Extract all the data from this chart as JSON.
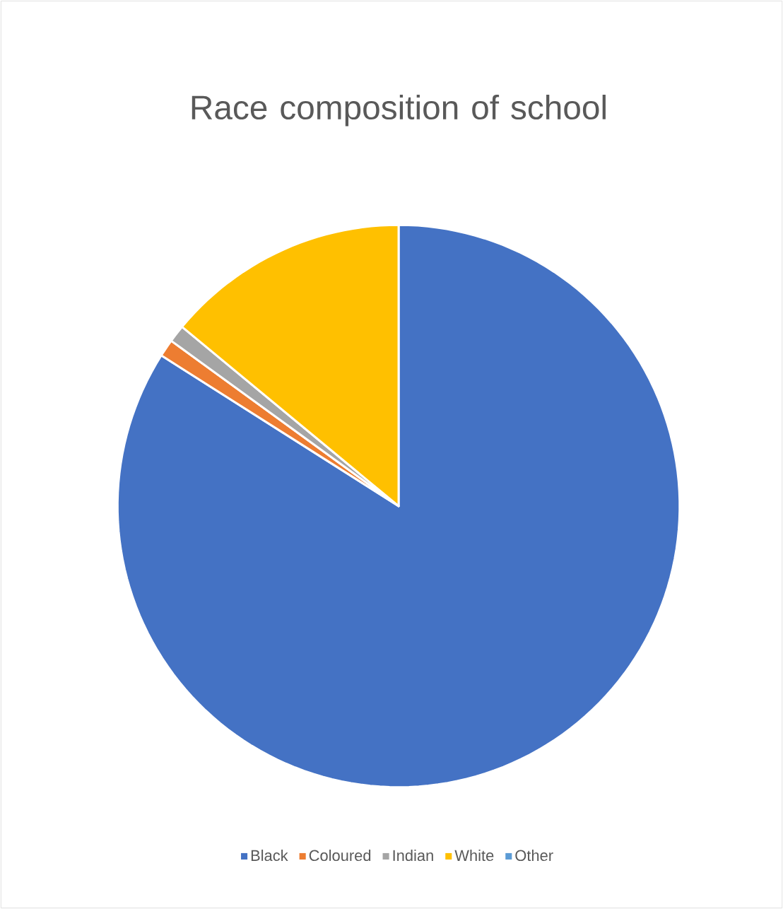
{
  "chart_data": {
    "type": "pie",
    "title": "Race composition of school",
    "categories": [
      "Black",
      "Coloured",
      "Indian",
      "White",
      "Other"
    ],
    "values": [
      84,
      1,
      1,
      14,
      0
    ],
    "colors": [
      "#4472c4",
      "#ed7d31",
      "#a5a5a5",
      "#ffc000",
      "#5b9bd5"
    ],
    "legend": "bottom"
  }
}
